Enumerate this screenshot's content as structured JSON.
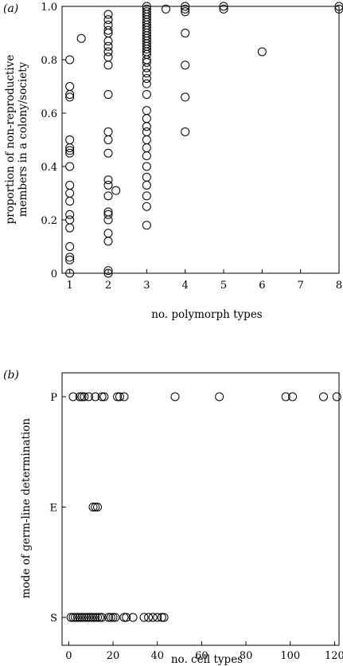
{
  "chart_data": [
    {
      "type": "scatter",
      "panel_label": "(a)",
      "xlabel": "no. polymorph types",
      "ylabel_lines": [
        "proportion of non-reproductive",
        "members in a colony/society"
      ],
      "xlim": [
        0.8,
        8
      ],
      "ylim": [
        0,
        1
      ],
      "x_ticks": [
        1,
        2,
        3,
        4,
        5,
        6,
        7,
        8
      ],
      "x_tick_labels": [
        "1",
        "2",
        "3",
        "4",
        "5",
        "6",
        "7",
        "8"
      ],
      "y_ticks": [
        0,
        0.2,
        0.4,
        0.6,
        0.8,
        1.0
      ],
      "y_tick_labels": [
        "0",
        "0.2",
        "0.4",
        "0.6",
        "0.8",
        "1.0"
      ],
      "grid": false,
      "marker": "open-circle",
      "points": [
        [
          1.0,
          0.8
        ],
        [
          1.0,
          0.7
        ],
        [
          1.0,
          0.67
        ],
        [
          1.0,
          0.66
        ],
        [
          1.0,
          0.5
        ],
        [
          1.0,
          0.47
        ],
        [
          1.0,
          0.46
        ],
        [
          1.0,
          0.45
        ],
        [
          1.0,
          0.4
        ],
        [
          1.0,
          0.33
        ],
        [
          1.0,
          0.3
        ],
        [
          1.0,
          0.27
        ],
        [
          1.0,
          0.22
        ],
        [
          1.0,
          0.2
        ],
        [
          1.0,
          0.17
        ],
        [
          1.0,
          0.1
        ],
        [
          1.0,
          0.06
        ],
        [
          1.0,
          0.05
        ],
        [
          1.0,
          0.0
        ],
        [
          1.3,
          0.88
        ],
        [
          2.0,
          0.97
        ],
        [
          2.0,
          0.95
        ],
        [
          2.0,
          0.93
        ],
        [
          2.0,
          0.91
        ],
        [
          2.0,
          0.9
        ],
        [
          2.0,
          0.87
        ],
        [
          2.0,
          0.85
        ],
        [
          2.0,
          0.83
        ],
        [
          2.0,
          0.81
        ],
        [
          2.0,
          0.78
        ],
        [
          2.0,
          0.67
        ],
        [
          2.0,
          0.53
        ],
        [
          2.0,
          0.5
        ],
        [
          2.0,
          0.45
        ],
        [
          2.0,
          0.35
        ],
        [
          2.0,
          0.33
        ],
        [
          2.0,
          0.29
        ],
        [
          2.0,
          0.23
        ],
        [
          2.0,
          0.22
        ],
        [
          2.0,
          0.2
        ],
        [
          2.0,
          0.15
        ],
        [
          2.0,
          0.12
        ],
        [
          2.0,
          0.01
        ],
        [
          2.0,
          0.0
        ],
        [
          2.2,
          0.31
        ],
        [
          3.0,
          1.0
        ],
        [
          3.0,
          0.99
        ],
        [
          3.0,
          0.98
        ],
        [
          3.0,
          0.97
        ],
        [
          3.0,
          0.96
        ],
        [
          3.0,
          0.95
        ],
        [
          3.0,
          0.94
        ],
        [
          3.0,
          0.93
        ],
        [
          3.0,
          0.92
        ],
        [
          3.0,
          0.91
        ],
        [
          3.0,
          0.9
        ],
        [
          3.0,
          0.89
        ],
        [
          3.0,
          0.88
        ],
        [
          3.0,
          0.87
        ],
        [
          3.0,
          0.86
        ],
        [
          3.0,
          0.85
        ],
        [
          3.0,
          0.84
        ],
        [
          3.0,
          0.83
        ],
        [
          3.0,
          0.82
        ],
        [
          3.0,
          0.8
        ],
        [
          3.0,
          0.79
        ],
        [
          3.0,
          0.77
        ],
        [
          3.0,
          0.75
        ],
        [
          3.0,
          0.73
        ],
        [
          3.0,
          0.71
        ],
        [
          3.0,
          0.67
        ],
        [
          3.0,
          0.61
        ],
        [
          3.0,
          0.58
        ],
        [
          3.0,
          0.55
        ],
        [
          3.0,
          0.53
        ],
        [
          3.0,
          0.5
        ],
        [
          3.0,
          0.47
        ],
        [
          3.0,
          0.44
        ],
        [
          3.0,
          0.4
        ],
        [
          3.0,
          0.36
        ],
        [
          3.0,
          0.33
        ],
        [
          3.0,
          0.29
        ],
        [
          3.0,
          0.25
        ],
        [
          3.0,
          0.18
        ],
        [
          3.5,
          0.99
        ],
        [
          4.0,
          1.0
        ],
        [
          4.0,
          0.99
        ],
        [
          4.0,
          0.98
        ],
        [
          4.0,
          0.9
        ],
        [
          4.0,
          0.78
        ],
        [
          4.0,
          0.66
        ],
        [
          4.0,
          0.53
        ],
        [
          5.0,
          1.0
        ],
        [
          5.0,
          0.99
        ],
        [
          6.0,
          0.83
        ],
        [
          8.0,
          1.0
        ],
        [
          8.0,
          0.99
        ]
      ]
    },
    {
      "type": "scatter",
      "panel_label": "(b)",
      "xlabel": "no. cell types",
      "ylabel_lines": [
        "mode of germ-line determination"
      ],
      "xlim": [
        -3,
        122
      ],
      "categories_y": [
        "S",
        "E",
        "P"
      ],
      "x_ticks": [
        0,
        20,
        40,
        60,
        80,
        100,
        120
      ],
      "x_tick_labels": [
        "0",
        "20",
        "40",
        "60",
        "80",
        "100",
        "120"
      ],
      "grid": false,
      "marker": "open-circle",
      "points": [
        [
          2,
          "P"
        ],
        [
          5,
          "P"
        ],
        [
          6,
          "P"
        ],
        [
          7,
          "P"
        ],
        [
          9,
          "P"
        ],
        [
          12,
          "P"
        ],
        [
          15,
          "P"
        ],
        [
          16,
          "P"
        ],
        [
          22,
          "P"
        ],
        [
          23,
          "P"
        ],
        [
          25,
          "P"
        ],
        [
          48,
          "P"
        ],
        [
          68,
          "P"
        ],
        [
          98,
          "P"
        ],
        [
          101,
          "P"
        ],
        [
          115,
          "P"
        ],
        [
          121,
          "P"
        ],
        [
          11,
          "E"
        ],
        [
          12,
          "E"
        ],
        [
          13,
          "E"
        ],
        [
          1,
          "S"
        ],
        [
          2,
          "S"
        ],
        [
          3,
          "S"
        ],
        [
          4,
          "S"
        ],
        [
          5,
          "S"
        ],
        [
          6,
          "S"
        ],
        [
          7,
          "S"
        ],
        [
          8,
          "S"
        ],
        [
          9,
          "S"
        ],
        [
          10,
          "S"
        ],
        [
          11,
          "S"
        ],
        [
          12,
          "S"
        ],
        [
          13,
          "S"
        ],
        [
          14,
          "S"
        ],
        [
          15,
          "S"
        ],
        [
          18,
          "S"
        ],
        [
          19,
          "S"
        ],
        [
          20,
          "S"
        ],
        [
          21,
          "S"
        ],
        [
          25,
          "S"
        ],
        [
          26,
          "S"
        ],
        [
          29,
          "S"
        ],
        [
          34,
          "S"
        ],
        [
          36,
          "S"
        ],
        [
          38,
          "S"
        ],
        [
          40,
          "S"
        ],
        [
          42,
          "S"
        ],
        [
          43,
          "S"
        ]
      ]
    }
  ]
}
